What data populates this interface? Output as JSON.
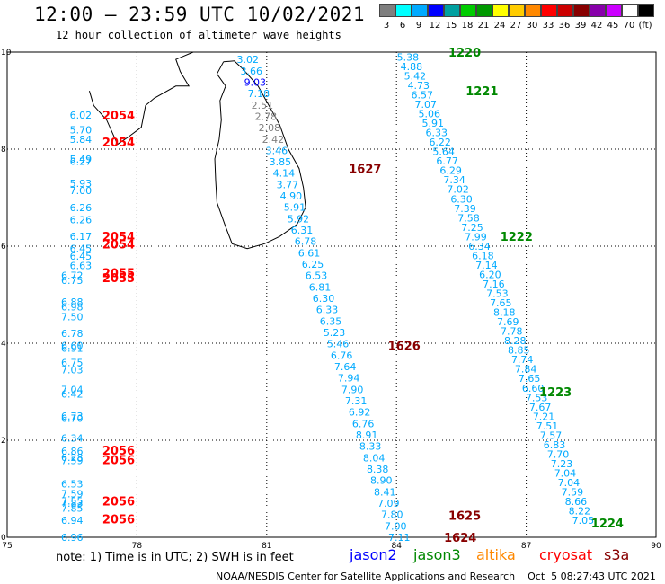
{
  "title": "12:00 – 23:59 UTC 10/02/2021",
  "subtitle": "12 hour collection of altimeter wave heights",
  "legend": {
    "colors": [
      "#7f7f7f",
      "#00ffff",
      "#00aaff",
      "#0000ff",
      "#00a0a0",
      "#00cc00",
      "#009900",
      "#ffff00",
      "#ffcc00",
      "#ff8800",
      "#ff0000",
      "#cc0000",
      "#880000",
      "#8800aa",
      "#cc00ff",
      "#ffffff",
      "#000000"
    ],
    "labels": [
      "3",
      "6",
      "9",
      "12",
      "15",
      "18",
      "21",
      "24",
      "27",
      "30",
      "33",
      "36",
      "39",
      "42",
      "45",
      "70",
      "(ft)"
    ]
  },
  "axes": {
    "x_ticks": [
      "75",
      "78",
      "81",
      "84",
      "87",
      "90"
    ],
    "y_ticks": [
      "0",
      "2",
      "4",
      "6",
      "8",
      "10"
    ]
  },
  "tracks": [
    {
      "name": "track-2054",
      "color": "#ff0000",
      "lon": 76.8,
      "values": [
        "6.02",
        "5.70",
        "5.84",
        "5.49",
        "6.27",
        "5.93",
        "7.00",
        "6.26",
        "6.26",
        "6.17",
        "6.45",
        "6.45",
        "6.63"
      ],
      "lats": [
        8.7,
        8.4,
        8.2,
        7.8,
        7.75,
        7.3,
        7.15,
        6.8,
        6.55,
        6.2,
        5.95,
        5.8,
        5.6
      ]
    },
    {
      "name": "track-2055",
      "color": "#ff0000",
      "lon": 76.6,
      "values": [
        "6.72",
        "6.75",
        "6.88",
        "6.98",
        "7.50",
        "6.78",
        "6.60",
        "6.91",
        "6.75",
        "7.03",
        "7.04",
        "6.42",
        "6.73",
        "6.70",
        "6.34"
      ],
      "lats": [
        5.4,
        5.3,
        4.85,
        4.75,
        4.55,
        4.2,
        3.95,
        3.9,
        3.6,
        3.45,
        3.05,
        2.95,
        2.5,
        2.45,
        2.05
      ]
    },
    {
      "name": "track-2056",
      "color": "#ff0000",
      "lon": 76.6,
      "values": [
        "6.86",
        "6.28",
        "7.59",
        "6.53",
        "7.59",
        "7.55",
        "7.83",
        "7.85",
        "6.94",
        "6.96"
      ],
      "lats": [
        1.78,
        1.65,
        1.58,
        1.1,
        0.9,
        0.75,
        0.7,
        0.6,
        0.35,
        0.0
      ]
    }
  ],
  "track_labels": [
    {
      "text": "2054",
      "color": "#ff0000",
      "lat": 8.7
    },
    {
      "text": "2054",
      "color": "#ff0000",
      "lat": 8.15
    },
    {
      "text": "2054",
      "color": "#ff0000",
      "lat": 6.2
    },
    {
      "text": "2054",
      "color": "#ff0000",
      "lat": 6.05
    },
    {
      "text": "2055",
      "color": "#ff0000",
      "lat": 5.45
    },
    {
      "text": "2055",
      "color": "#ff0000",
      "lat": 5.35
    },
    {
      "text": "2056",
      "color": "#ff0000",
      "lat": 1.8
    },
    {
      "text": "2056",
      "color": "#ff0000",
      "lat": 1.6
    },
    {
      "text": "2056",
      "color": "#ff0000",
      "lat": 0.75
    },
    {
      "text": "2056",
      "color": "#ff0000",
      "lat": 0.38
    }
  ],
  "track_1627": {
    "values": [
      "3.02",
      "3.66",
      "9.03",
      "7.18",
      "2.51",
      "2.78",
      "2.08",
      "2.42",
      "3.46",
      "3.85",
      "4.14",
      "3.77",
      "4.90",
      "5.91",
      "5.92",
      "6.31",
      "6.78",
      "6.61",
      "6.25",
      "6.53",
      "6.81",
      "6.30",
      "6.33",
      "6.35",
      "5.23",
      "5.46",
      "6.76",
      "7.64",
      "7.94",
      "7.90",
      "7.31",
      "6.92",
      "6.76",
      "8.91",
      "8.33",
      "8.04",
      "8.38",
      "8.90",
      "8.41",
      "7.09",
      "7.80",
      "7.00",
      "7.11"
    ],
    "colors": [
      "#00aaff",
      "#00aaff",
      "#0000ff",
      "#00aaff",
      "#7f7f7f",
      "#7f7f7f",
      "#7f7f7f",
      "#7f7f7f",
      "#00aaff",
      "#00aaff",
      "#00aaff",
      "#00aaff",
      "#00aaff",
      "#00aaff",
      "#00aaff",
      "#00aaff",
      "#00aaff",
      "#00aaff",
      "#00aaff",
      "#00aaff",
      "#00aaff",
      "#00aaff",
      "#00aaff",
      "#00aaff",
      "#00aaff",
      "#00aaff",
      "#00aaff",
      "#00aaff",
      "#00aaff",
      "#00aaff",
      "#00aaff",
      "#00aaff",
      "#00aaff",
      "#00aaff",
      "#00aaff",
      "#00aaff",
      "#00aaff",
      "#00aaff",
      "#00aaff",
      "#00aaff",
      "#00aaff",
      "#00aaff",
      "#00aaff"
    ]
  },
  "track_1220": {
    "values": [
      "5.38",
      "4.88",
      "5.42",
      "4.73",
      "6.57",
      "7.07",
      "5.06",
      "5.91",
      "6.33",
      "6.22",
      "5.64",
      "6.77",
      "6.29",
      "7.34",
      "7.02",
      "6.30",
      "7.39",
      "7.58",
      "7.25",
      "7.99",
      "6.34",
      "6.18",
      "7.14",
      "6.20",
      "7.16",
      "7.53",
      "7.65",
      "8.18",
      "7.69",
      "7.78",
      "8.28",
      "8.85",
      "7.74",
      "7.84",
      "7.65",
      "6.60",
      "7.53",
      "7.67",
      "7.21",
      "7.51",
      "7.57",
      "6.83",
      "7.70",
      "7.23",
      "7.04",
      "7.04",
      "7.59",
      "8.66",
      "8.22",
      "7.05"
    ]
  },
  "time_labels": [
    {
      "text": "1220",
      "color": "#008800",
      "lon": 85.2,
      "lat": 10.0
    },
    {
      "text": "1221",
      "color": "#008800",
      "lon": 85.6,
      "lat": 9.2
    },
    {
      "text": "1627",
      "color": "#880000",
      "lon": 82.9,
      "lat": 7.6
    },
    {
      "text": "1222",
      "color": "#008800",
      "lon": 86.4,
      "lat": 6.2
    },
    {
      "text": "1626",
      "color": "#880000",
      "lon": 83.8,
      "lat": 3.95
    },
    {
      "text": "1223",
      "color": "#008800",
      "lon": 87.3,
      "lat": 3.0
    },
    {
      "text": "1625",
      "color": "#880000",
      "lon": 85.2,
      "lat": 0.45
    },
    {
      "text": "1224",
      "color": "#008800",
      "lon": 88.5,
      "lat": 0.3
    },
    {
      "text": "1624",
      "color": "#880000",
      "lon": 85.1,
      "lat": 0.0
    }
  ],
  "note": "note:  1) Time is in UTC;  2) SWH is in feet",
  "satellites": [
    {
      "name": "jason2",
      "color": "#0000ff"
    },
    {
      "name": "jason3",
      "color": "#008800"
    },
    {
      "name": "altika",
      "color": "#ff8800"
    },
    {
      "name": "cryosat",
      "color": "#ff0000"
    },
    {
      "name": "s3a",
      "color": "#880000"
    }
  ],
  "credit": "NOAA/NESDIS Center for Satellite Applications and Research    Oct  5 08:27:43 UTC 2021"
}
